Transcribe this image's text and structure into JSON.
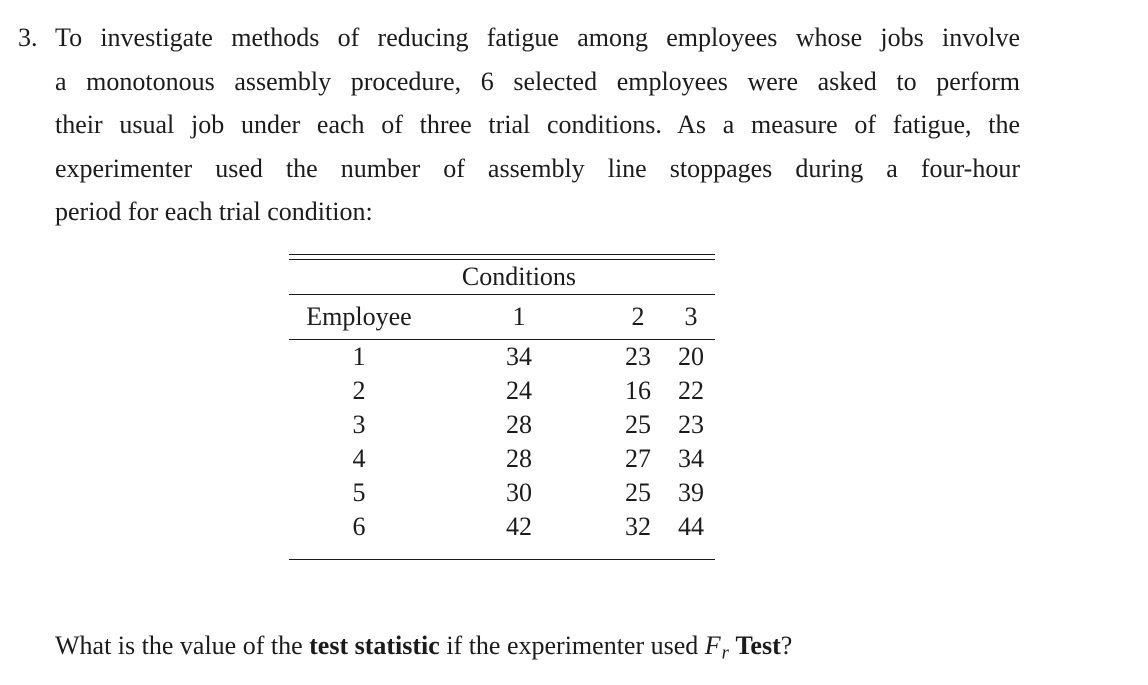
{
  "problem": {
    "number_label": "3.",
    "lines": [
      "To investigate methods of reducing fatigue among employees whose jobs involve",
      "a monotonous assembly procedure, 6 selected employees were asked to perform",
      "their usual job under each of three trial conditions. As a measure of fatigue, the",
      "experimenter used the number of assembly line stoppages during a four-hour",
      "period for each trial condition:"
    ]
  },
  "table": {
    "group_header": "Conditions",
    "columns": [
      "Employee",
      "1",
      "2",
      "3"
    ],
    "rows": [
      [
        "1",
        "34",
        "23",
        "20"
      ],
      [
        "2",
        "24",
        "16",
        "22"
      ],
      [
        "3",
        "28",
        "25",
        "23"
      ],
      [
        "4",
        "28",
        "27",
        "34"
      ],
      [
        "5",
        "30",
        "25",
        "39"
      ],
      [
        "6",
        "42",
        "32",
        "44"
      ]
    ]
  },
  "question": {
    "segments": [
      {
        "text": "What is the value of the ",
        "style": "normal"
      },
      {
        "text": "test statistic",
        "style": "bold"
      },
      {
        "text": " if the experimenter used ",
        "style": "normal"
      },
      {
        "text": "F",
        "style": "italic"
      },
      {
        "text": "r",
        "style": "sub"
      },
      {
        "text": " ",
        "style": "normal"
      },
      {
        "text": "Test",
        "style": "bold"
      },
      {
        "text": "?",
        "style": "normal"
      }
    ]
  },
  "colors": {
    "text": "#1b1b1b",
    "background": "#ffffff",
    "rule": "#1b1b1b"
  }
}
